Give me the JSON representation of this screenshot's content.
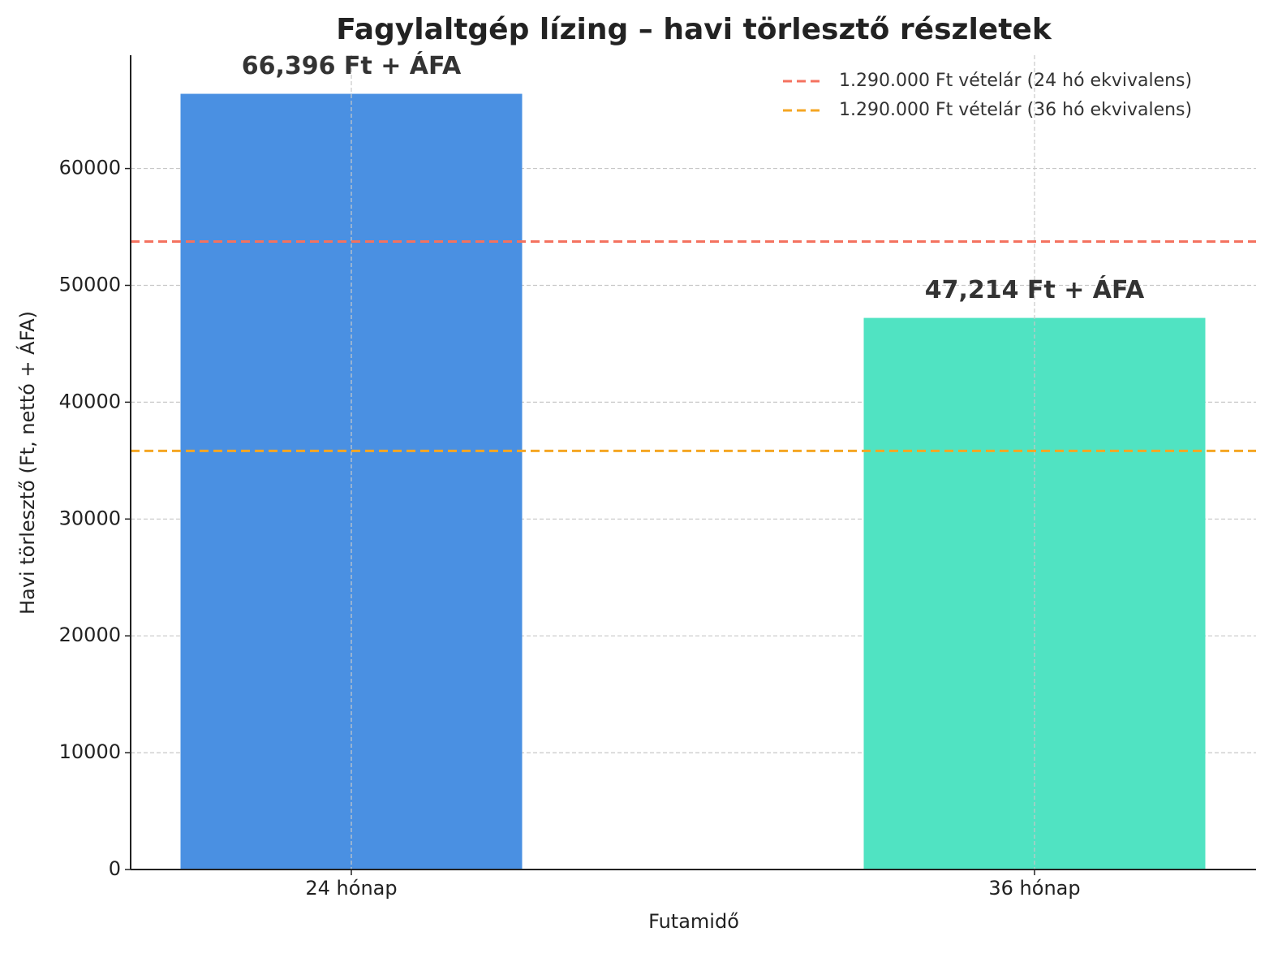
{
  "chart_data": {
    "type": "bar",
    "title": "Fagylaltgép lízing – havi törlesztő részletek",
    "x_label": "Futamidő",
    "y_label": "Havi törlesztő (Ft, nettó + ÁFA)",
    "categories": [
      "24 hónap",
      "36 hónap"
    ],
    "values": [
      66396,
      47214
    ],
    "value_labels": [
      "66,396 Ft + ÁFA",
      "47,214 Ft + ÁFA"
    ],
    "colors": [
      "#4a90e2",
      "#50e3c2"
    ],
    "reference_lines": [
      {
        "name": "1.290.000 Ft vételár (24 hó ekvivalens)",
        "value": 53750,
        "color": "#f4725f"
      },
      {
        "name": "1.290.000 Ft vételár (36 hó ekvivalens)",
        "value": 35833.33,
        "color": "#f5a623"
      }
    ],
    "ylim": [
      0,
      69700
    ],
    "yticks": [
      0,
      10000,
      20000,
      30000,
      40000,
      50000,
      60000
    ],
    "grid": true,
    "legend": "upper right"
  }
}
